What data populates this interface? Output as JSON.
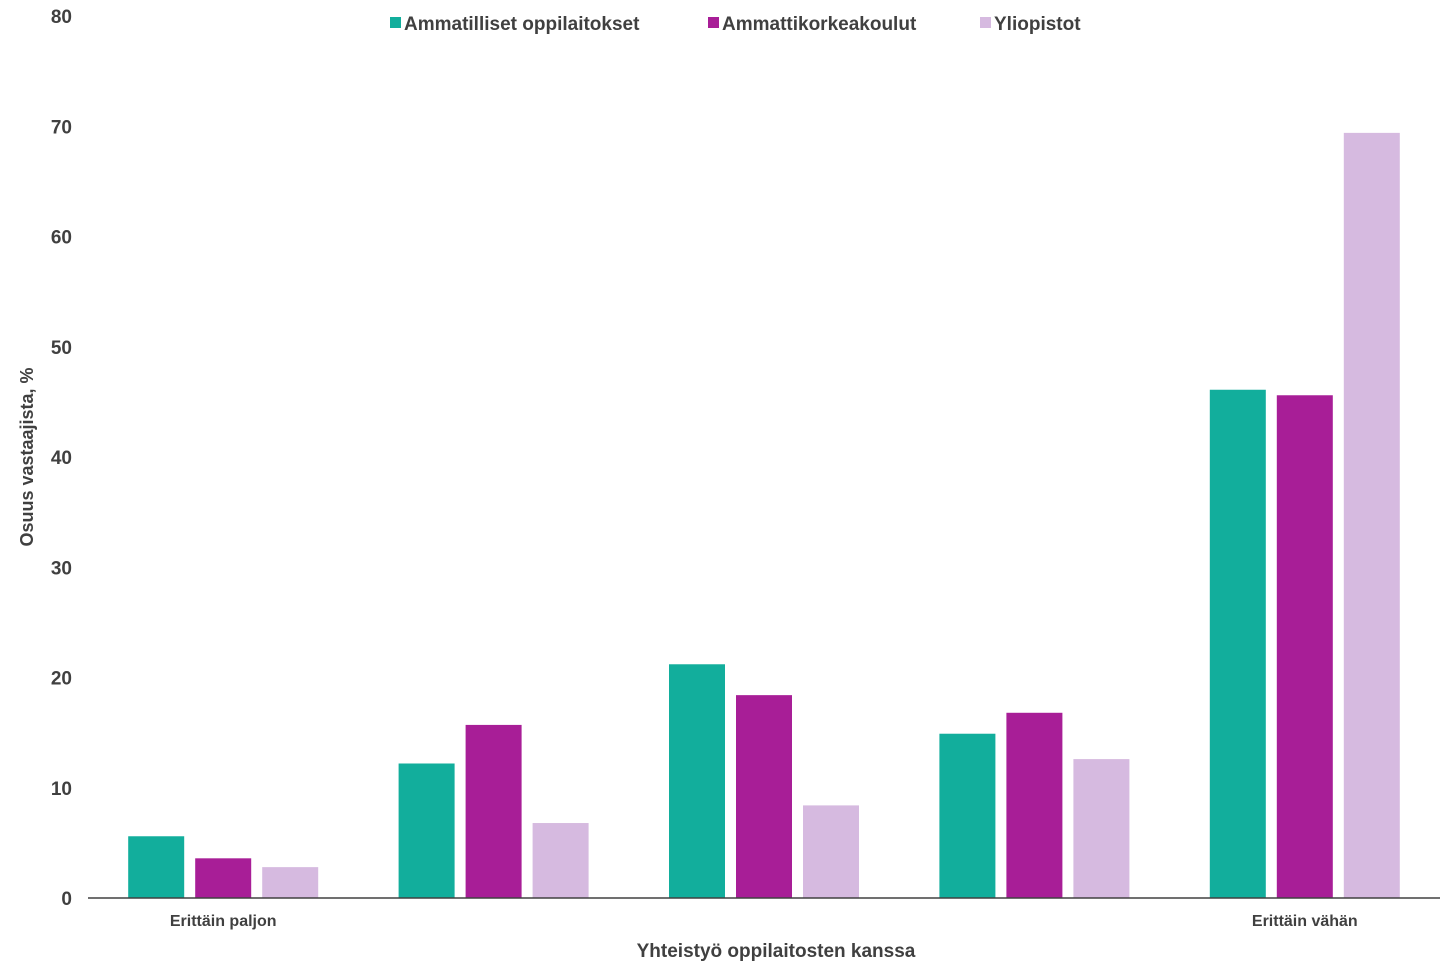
{
  "chart_data": {
    "type": "bar",
    "title": "",
    "xlabel": "Yhteistyö oppilaitosten kanssa",
    "ylabel": "Osuus vastaajista, %",
    "ylim": [
      0,
      80
    ],
    "yticks": [
      0,
      10,
      20,
      30,
      40,
      50,
      60,
      70,
      80
    ],
    "grid": false,
    "legend_position": "top",
    "categories": [
      "Erittäin paljon",
      "",
      "",
      "",
      "Erittäin vähän"
    ],
    "series": [
      {
        "name": "Ammatilliset oppilaitokset",
        "color": "#12ae9c",
        "values": [
          5.6,
          12.2,
          21.2,
          14.9,
          46.1
        ]
      },
      {
        "name": "Ammattikorkeakoulut",
        "color": "#a81e97",
        "values": [
          3.6,
          15.7,
          18.4,
          16.8,
          45.6
        ]
      },
      {
        "name": "Yliopistot",
        "color": "#d6bae0",
        "values": [
          2.8,
          6.8,
          8.4,
          12.6,
          69.4
        ]
      }
    ]
  }
}
